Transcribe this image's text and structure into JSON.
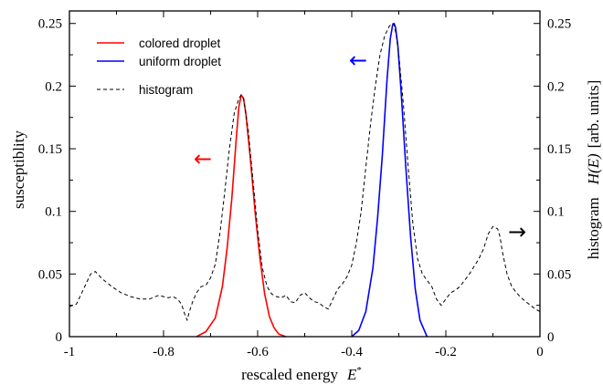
{
  "chart_data": {
    "type": "line",
    "xlabel": "rescaled energy",
    "xlabel_symbol": "E",
    "xlabel_symbol_sup": "*",
    "ylabel_left": "susceptiblity",
    "ylabel_right_text": "histogram",
    "ylabel_right_symbol": "H(E)",
    "ylabel_right_units": "[arb. units]",
    "xlim": [
      -1,
      0
    ],
    "ylim": [
      0,
      0.26
    ],
    "x_ticks": [
      -1,
      -0.8,
      -0.6,
      -0.4,
      -0.2,
      0
    ],
    "x_tick_labels": [
      "-1",
      "-0.8",
      "-0.6",
      "-0.4",
      "-0.2",
      "0"
    ],
    "y_ticks": [
      0,
      0.05,
      0.1,
      0.15,
      0.2,
      0.25
    ],
    "y_tick_labels": [
      "0",
      "0.05",
      "0.1",
      "0.15",
      "0.2",
      "0.25"
    ],
    "y_right_tick_labels": [
      "0",
      "0.05",
      "0.1",
      "0.15",
      "0.2",
      "0.25"
    ],
    "grid": false,
    "legend_position": "top-left",
    "series": [
      {
        "name": "colored droplet",
        "color": "#ff0000",
        "style": "solid",
        "axis": "left",
        "x": [
          -0.73,
          -0.71,
          -0.69,
          -0.675,
          -0.665,
          -0.655,
          -0.645,
          -0.64,
          -0.635,
          -0.63,
          -0.625,
          -0.615,
          -0.605,
          -0.595,
          -0.585,
          -0.575,
          -0.565,
          -0.555,
          -0.54
        ],
        "y": [
          0.0,
          0.004,
          0.015,
          0.04,
          0.07,
          0.11,
          0.16,
          0.183,
          0.193,
          0.19,
          0.178,
          0.14,
          0.098,
          0.062,
          0.034,
          0.016,
          0.007,
          0.002,
          0.0
        ]
      },
      {
        "name": "uniform droplet",
        "color": "#0000ff",
        "style": "solid",
        "axis": "left",
        "x": [
          -0.4,
          -0.385,
          -0.37,
          -0.355,
          -0.345,
          -0.335,
          -0.325,
          -0.318,
          -0.313,
          -0.31,
          -0.307,
          -0.302,
          -0.295,
          -0.285,
          -0.275,
          -0.265,
          -0.255,
          -0.24
        ],
        "y": [
          0.0,
          0.005,
          0.02,
          0.055,
          0.095,
          0.145,
          0.205,
          0.238,
          0.249,
          0.25,
          0.247,
          0.232,
          0.195,
          0.135,
          0.08,
          0.038,
          0.013,
          0.0
        ]
      },
      {
        "name": "histogram",
        "color": "#000000",
        "style": "dashed",
        "axis": "right",
        "x": [
          -1.0,
          -0.985,
          -0.97,
          -0.955,
          -0.945,
          -0.93,
          -0.91,
          -0.89,
          -0.87,
          -0.85,
          -0.83,
          -0.81,
          -0.8,
          -0.79,
          -0.78,
          -0.77,
          -0.762,
          -0.755,
          -0.75,
          -0.745,
          -0.738,
          -0.73,
          -0.72,
          -0.71,
          -0.7,
          -0.69,
          -0.68,
          -0.67,
          -0.66,
          -0.65,
          -0.64,
          -0.635,
          -0.63,
          -0.62,
          -0.61,
          -0.6,
          -0.59,
          -0.58,
          -0.57,
          -0.56,
          -0.55,
          -0.54,
          -0.53,
          -0.52,
          -0.51,
          -0.5,
          -0.49,
          -0.48,
          -0.47,
          -0.46,
          -0.45,
          -0.44,
          -0.43,
          -0.42,
          -0.41,
          -0.4,
          -0.39,
          -0.38,
          -0.37,
          -0.36,
          -0.35,
          -0.34,
          -0.33,
          -0.32,
          -0.313,
          -0.31,
          -0.305,
          -0.3,
          -0.29,
          -0.28,
          -0.27,
          -0.26,
          -0.25,
          -0.24,
          -0.23,
          -0.22,
          -0.21,
          -0.2,
          -0.19,
          -0.18,
          -0.17,
          -0.16,
          -0.15,
          -0.14,
          -0.13,
          -0.12,
          -0.11,
          -0.1,
          -0.09,
          -0.085,
          -0.08,
          -0.07,
          -0.06,
          -0.05,
          -0.04,
          -0.03,
          -0.02,
          -0.01,
          0.0
        ],
        "y": [
          0.024,
          0.026,
          0.038,
          0.05,
          0.052,
          0.046,
          0.04,
          0.035,
          0.032,
          0.03,
          0.03,
          0.033,
          0.032,
          0.031,
          0.032,
          0.03,
          0.026,
          0.018,
          0.013,
          0.02,
          0.028,
          0.035,
          0.04,
          0.041,
          0.047,
          0.058,
          0.083,
          0.115,
          0.15,
          0.178,
          0.19,
          0.193,
          0.19,
          0.165,
          0.125,
          0.085,
          0.055,
          0.04,
          0.034,
          0.032,
          0.031,
          0.033,
          0.028,
          0.027,
          0.033,
          0.035,
          0.031,
          0.028,
          0.027,
          0.024,
          0.022,
          0.03,
          0.038,
          0.042,
          0.048,
          0.057,
          0.075,
          0.1,
          0.135,
          0.17,
          0.2,
          0.225,
          0.24,
          0.248,
          0.25,
          0.249,
          0.24,
          0.225,
          0.185,
          0.135,
          0.09,
          0.062,
          0.05,
          0.045,
          0.04,
          0.03,
          0.025,
          0.03,
          0.035,
          0.037,
          0.04,
          0.045,
          0.05,
          0.056,
          0.062,
          0.07,
          0.082,
          0.088,
          0.086,
          0.08,
          0.068,
          0.05,
          0.04,
          0.035,
          0.031,
          0.028,
          0.025,
          0.022,
          0.02
        ]
      }
    ],
    "annotations": [
      {
        "text": "←",
        "color": "#ff0000",
        "meaning": "colored droplet uses left axis"
      },
      {
        "text": "←",
        "color": "#0000ff",
        "meaning": "uniform droplet uses left axis"
      },
      {
        "text": "→",
        "color": "#000000",
        "meaning": "histogram uses right axis"
      }
    ]
  }
}
